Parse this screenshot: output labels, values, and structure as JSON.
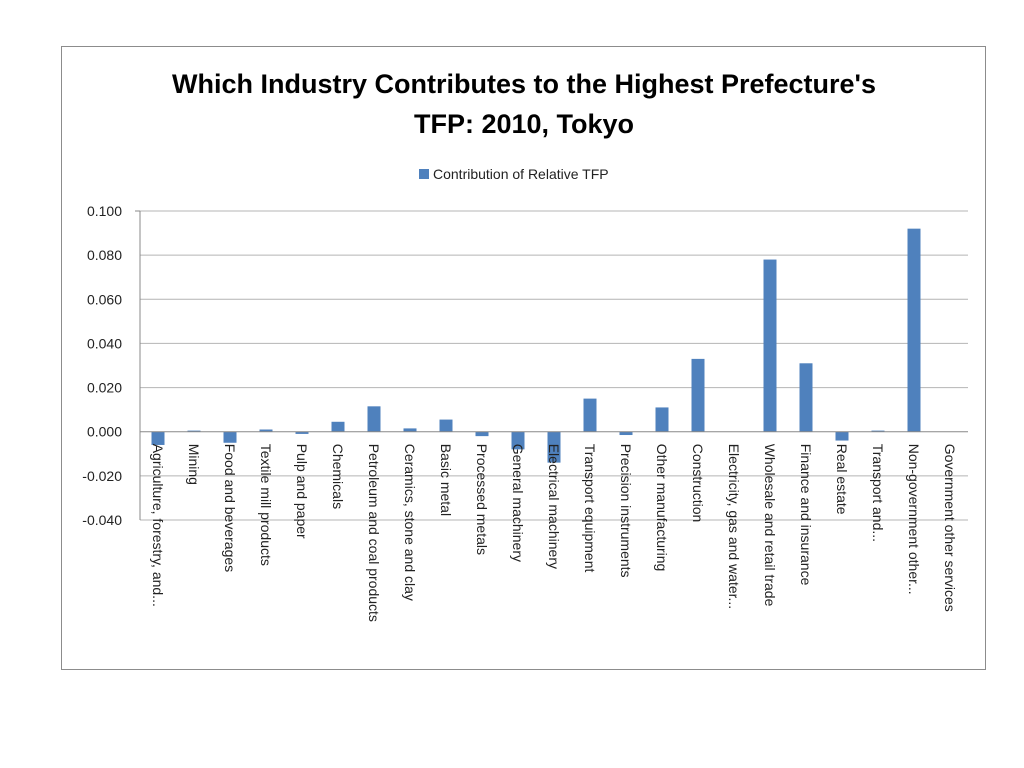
{
  "chart_data": {
    "type": "bar",
    "title_lines": [
      "Which Industry Contributes to the Highest Prefecture's",
      "TFP: 2010, Tokyo"
    ],
    "legend": {
      "position": "top",
      "color": "#4f81bd"
    },
    "xlabel": "",
    "ylabel": "",
    "ylim": [
      -0.04,
      0.1
    ],
    "yticks": [
      "0.100",
      "0.080",
      "0.060",
      "0.040",
      "0.020",
      "0.000",
      "-0.020",
      "-0.040"
    ],
    "ytick_values": [
      0.1,
      0.08,
      0.06,
      0.04,
      0.02,
      0.0,
      -0.02,
      -0.04
    ],
    "grid": true,
    "categories": [
      "Agriculture, forestry, and...",
      "Mining",
      "Food and beverages",
      "Textile mill products",
      "Pulp and paper",
      "Chemicals",
      "Petroleum and coal products",
      "Ceramics, stone and clay",
      "Basic metal",
      "Processed metals",
      "General machinery",
      "Electrical machinery",
      "Transport equipment",
      "Precision instruments",
      "Other manufacturing",
      "Construction",
      "Electricity, gas and water...",
      "Wholesale and retail trade",
      "Finance and insurance",
      "Real estate",
      "Transport and...",
      "Non-government other...",
      "Government other services"
    ],
    "series": [
      {
        "name": "Contribution of Relative TFP",
        "color": "#4f81bd",
        "values": [
          -0.006,
          0.0005,
          -0.005,
          0.001,
          -0.001,
          0.0045,
          0.0115,
          0.0015,
          0.0055,
          -0.002,
          -0.008,
          -0.014,
          0.015,
          -0.0015,
          0.011,
          0.033,
          0.0,
          0.078,
          0.031,
          -0.004,
          0.0005,
          0.092,
          0.0
        ]
      }
    ]
  }
}
